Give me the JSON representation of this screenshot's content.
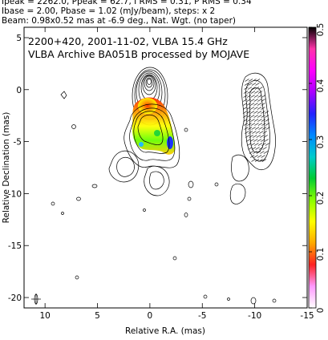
{
  "header": {
    "line1": "Ipeak = 2262.0, Ppeak = 62.7, I RMS = 0.31, P RMS = 0.34",
    "line2": "Ibase = 2.00, Pbase = 1.02 (mJy/beam), steps: x 2",
    "line3": "Beam: 0.98x0.52 mas at -6.9 deg., Nat. Wgt. (no taper)"
  },
  "chart_data": {
    "type": "heatmap",
    "title": "2200+420, 2001-11-02, VLBA 15.4 GHz",
    "subtitle": "VLBA Archive BA051B processed by MOJAVE",
    "xlabel": "Relative R.A. (mas)",
    "ylabel": "Relative Declination (mas)",
    "xlim": [
      12,
      -15
    ],
    "ylim": [
      -21,
      6
    ],
    "xticks": [
      10,
      5,
      0,
      -5,
      -10,
      -15
    ],
    "yticks": [
      5,
      0,
      -5,
      -10,
      -15,
      -20
    ],
    "colorbar": {
      "range": [
        0,
        0.5
      ],
      "ticks": [
        0,
        0.1,
        0.2,
        0.3,
        0.4,
        0.5
      ],
      "colors": [
        "#ffffff",
        "#ff99ff",
        "#ff2222",
        "#ffaa00",
        "#ffff00",
        "#88ff00",
        "#00cc33",
        "#00cccc",
        "#0088ff",
        "#2222ff",
        "#aa00ff",
        "#ff00ff",
        "#ff33aa",
        "#000000"
      ]
    },
    "grid": false,
    "core": {
      "x": 0.2,
      "y": -0.7
    },
    "jet_direction": "south-southwest",
    "beam": {
      "major_mas": 0.98,
      "minor_mas": 0.52,
      "pa_deg": -6.9
    }
  }
}
